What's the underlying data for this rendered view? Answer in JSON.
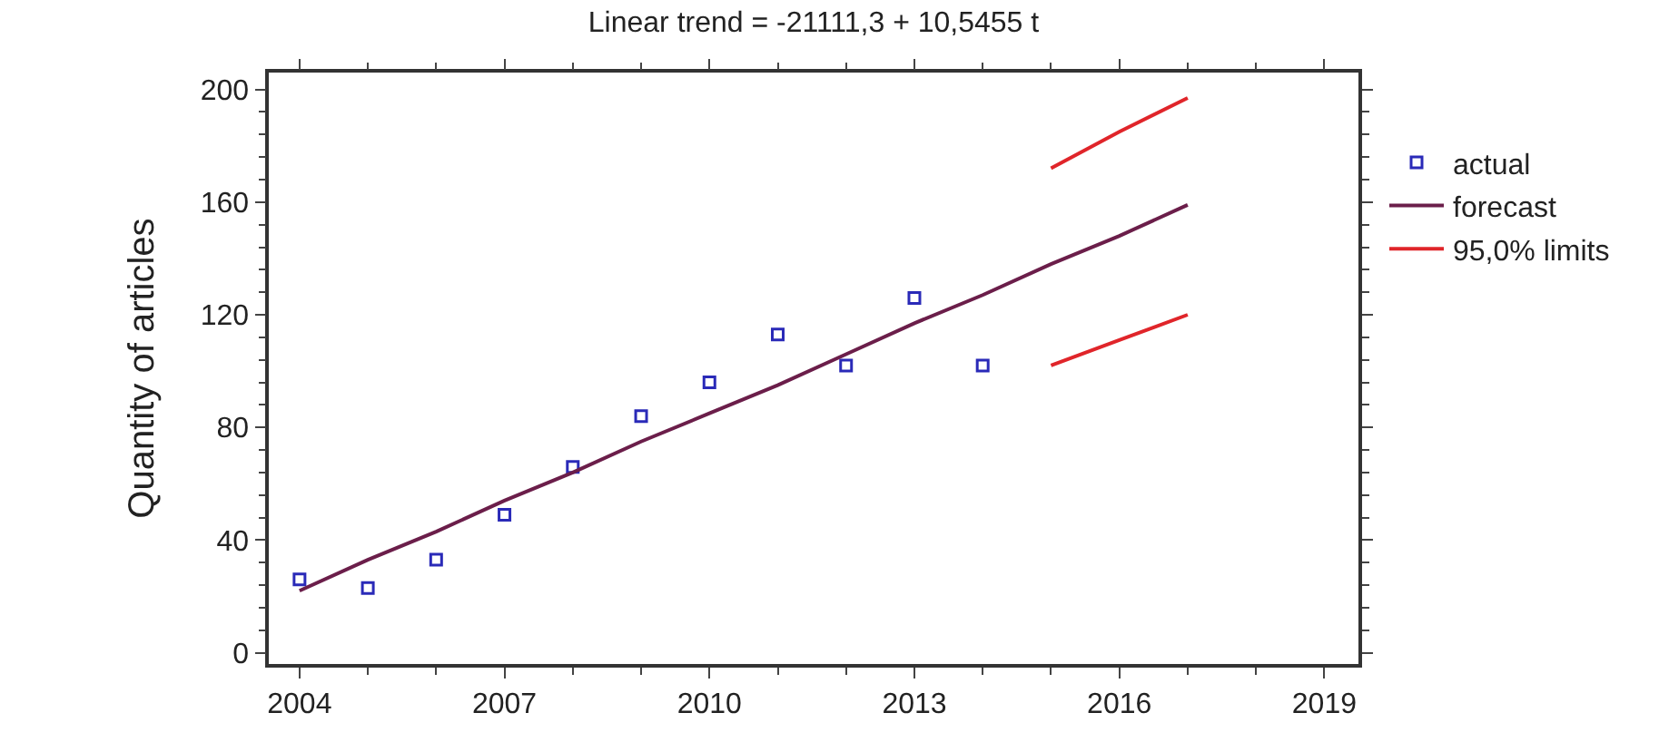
{
  "chart_data": {
    "type": "line",
    "title": "Linear trend = -21111,3 + 10,5455 t",
    "ylabel": "Quantity of articles",
    "xlim": [
      2003.55,
      2019.5
    ],
    "xticks": [
      2004,
      2007,
      2010,
      2013,
      2016,
      2019
    ],
    "ylim": [
      -4,
      206
    ],
    "yticks": [
      0,
      40,
      80,
      120,
      160,
      200
    ],
    "legend": "right",
    "series": [
      {
        "name": "actual",
        "type": "scatter",
        "marker": "square",
        "color": "#2a2ab8",
        "x": [
          2004,
          2005,
          2006,
          2007,
          2008,
          2009,
          2010,
          2011,
          2012,
          2013,
          2014
        ],
        "values": [
          26,
          23,
          33,
          49,
          66,
          84,
          96,
          113,
          102,
          126,
          102
        ]
      },
      {
        "name": "forecast",
        "color": "#6b1e4a",
        "x": [
          2004,
          2005,
          2006,
          2007,
          2008,
          2009,
          2010,
          2011,
          2012,
          2013,
          2014,
          2015,
          2016,
          2017
        ],
        "values": [
          22,
          33,
          43,
          54,
          64,
          75,
          85,
          95,
          106,
          117,
          127,
          138,
          148,
          159
        ]
      },
      {
        "name": "95,0% limits",
        "color": "#e0252a",
        "x": [
          2015,
          2016,
          2017
        ],
        "values": [
          172,
          185,
          197
        ]
      },
      {
        "color": "#e0252a",
        "x": [
          2015,
          2016,
          2017
        ],
        "values": [
          102,
          111,
          120
        ]
      }
    ]
  }
}
